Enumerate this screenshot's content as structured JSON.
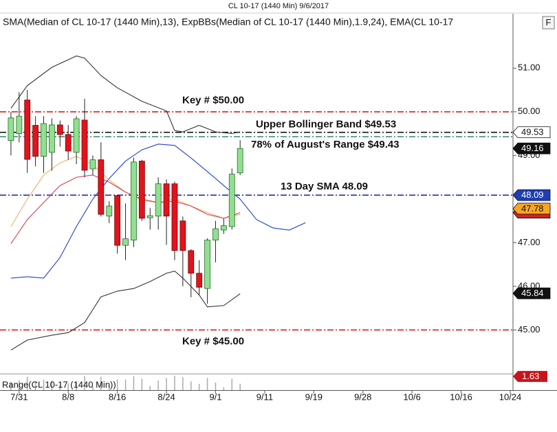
{
  "chart_data": {
    "type": "candlestick",
    "title": "CL 10-17 (1440 Min)  9/6/2017",
    "subtitle": "SMA(Median of CL 10-17 (1440 Min),13), ExpBBs(Median of CL 10-17 (1440 Min),1.9,24), EMA(CL 10-17",
    "button": "F",
    "up_color": "#8fe08f",
    "down_color": "#e3121b",
    "x": [
      0,
      1,
      2,
      3,
      4,
      5,
      6,
      7,
      8,
      9,
      10,
      11,
      12,
      13,
      14,
      15,
      16,
      17,
      18,
      19,
      20,
      21,
      22,
      23,
      24,
      25,
      26,
      27,
      28
    ],
    "open": [
      49.34,
      49.5,
      50.27,
      49.69,
      48.98,
      49.07,
      49.7,
      49.48,
      49.07,
      49.81,
      48.69,
      48.9,
      47.61,
      48.08,
      46.94,
      47.06,
      48.87,
      47.57,
      47.61,
      48.35,
      48.35,
      47.5,
      46.82,
      46.3,
      45.95,
      47.06,
      47.29,
      47.37,
      48.6
    ],
    "high": [
      50.0,
      50.45,
      50.5,
      49.9,
      49.9,
      49.85,
      49.8,
      49.7,
      49.9,
      50.3,
      49.0,
      49.3,
      47.95,
      48.1,
      47.9,
      48.95,
      48.9,
      47.8,
      48.5,
      48.45,
      48.4,
      47.6,
      46.85,
      46.6,
      47.1,
      47.5,
      47.55,
      48.7,
      49.35
    ],
    "low": [
      49.0,
      49.3,
      48.6,
      48.75,
      48.6,
      48.65,
      49.2,
      48.9,
      48.8,
      48.5,
      48.55,
      47.6,
      47.45,
      46.75,
      46.6,
      46.9,
      47.5,
      47.3,
      47.3,
      46.95,
      46.6,
      46.0,
      45.75,
      45.8,
      45.6,
      46.55,
      47.2,
      47.3,
      48.55
    ],
    "close": [
      49.86,
      49.9,
      48.91,
      48.98,
      49.73,
      49.7,
      49.48,
      49.1,
      49.84,
      48.66,
      48.9,
      47.65,
      47.84,
      46.94,
      47.09,
      48.85,
      47.56,
      47.62,
      48.35,
      47.61,
      46.82,
      46.82,
      46.3,
      45.98,
      47.06,
      47.32,
      47.39,
      48.57,
      49.16
    ],
    "xlim": [
      -1,
      61
    ],
    "xticks": [
      {
        "value": 1,
        "label": "7/31"
      },
      {
        "value": 7,
        "label": "8/8"
      },
      {
        "value": 13,
        "label": "8/16"
      },
      {
        "value": 19,
        "label": "8/24"
      },
      {
        "value": 25,
        "label": "9/1"
      },
      {
        "value": 31,
        "label": "9/11"
      },
      {
        "value": 37,
        "label": "9/19"
      },
      {
        "value": 43,
        "label": "9/28"
      },
      {
        "value": 49,
        "label": "10/6"
      },
      {
        "value": 55,
        "label": "10/16"
      },
      {
        "value": 61,
        "label": "10/24"
      }
    ],
    "ylim": [
      44,
      52.2
    ],
    "yticks": [
      {
        "value": 45,
        "label": "45.00"
      },
      {
        "value": 46,
        "label": "46.00"
      },
      {
        "value": 47,
        "label": "47.00"
      },
      {
        "value": 49,
        "label": "49.00"
      },
      {
        "value": 50,
        "label": "50.00"
      },
      {
        "value": 51,
        "label": "51.00"
      }
    ],
    "lines": [
      {
        "color": "#333333",
        "x": [
          0,
          2,
          5,
          8,
          9,
          11,
          13,
          16,
          19,
          20,
          21,
          23,
          25,
          27,
          28
        ],
        "values": [
          50.08,
          50.6,
          51.02,
          51.28,
          51.23,
          50.83,
          50.55,
          50.24,
          50.02,
          49.57,
          49.54,
          49.69,
          49.54,
          49.5,
          49.54
        ]
      },
      {
        "color": "#333333",
        "x": [
          0,
          2,
          5,
          7,
          9,
          11,
          13,
          15,
          17,
          19,
          20,
          21,
          23,
          24,
          26,
          28
        ],
        "values": [
          44.54,
          44.77,
          44.88,
          44.94,
          45.17,
          45.76,
          45.89,
          45.95,
          46.11,
          46.3,
          46.35,
          46.19,
          45.8,
          45.53,
          45.56,
          45.83
        ]
      },
      {
        "color": "#2040d0",
        "x": [
          0,
          2,
          4,
          6,
          8,
          10,
          12,
          14,
          16,
          18,
          20,
          22,
          24,
          26,
          28,
          30,
          32,
          34,
          36
        ],
        "values": [
          46.19,
          46.22,
          46.19,
          46.66,
          47.37,
          48.0,
          48.47,
          48.87,
          49.13,
          49.26,
          49.23,
          48.94,
          48.63,
          48.31,
          48.0,
          47.53,
          47.34,
          47.29,
          47.46
        ]
      },
      {
        "color": "#f0b060",
        "x": [
          0,
          2,
          4,
          6,
          8,
          10,
          12,
          14,
          16,
          18,
          20,
          22,
          24,
          26,
          28
        ],
        "values": [
          47.37,
          48.0,
          48.55,
          48.83,
          48.98,
          48.79,
          48.44,
          48.16,
          47.97,
          47.92,
          48.0,
          47.84,
          47.69,
          47.56,
          47.65
        ]
      },
      {
        "color": "#d04050",
        "x": [
          0,
          2,
          4,
          6,
          8,
          10,
          12,
          14,
          16,
          18,
          20,
          22,
          24,
          26,
          28
        ],
        "values": [
          46.98,
          47.53,
          47.92,
          48.31,
          48.5,
          48.55,
          48.39,
          48.16,
          48.0,
          47.92,
          47.95,
          47.84,
          47.65,
          47.56,
          47.69
        ]
      }
    ],
    "hlines": [
      {
        "value": 50.0,
        "color": "#d42020",
        "label": "Key # $50.00"
      },
      {
        "value": 49.53,
        "color": "#111111",
        "label": "Upper Bollinger Band $49.53"
      },
      {
        "value": 49.43,
        "color": "#2a8a60",
        "label": "78% of August's Range $49.43"
      },
      {
        "value": 48.09,
        "color": "#1a1aa0",
        "label": "13 Day SMA 48.09"
      },
      {
        "value": 45.0,
        "color": "#d42020",
        "label": "Key # $45.00"
      }
    ],
    "price_tags": [
      {
        "value": 49.53,
        "color": "#ffffff",
        "text_color": "#111111"
      },
      {
        "value": 49.16,
        "color": "#111111",
        "text_color": "#ffffff"
      },
      {
        "value": 48.09,
        "color": "#1e3eb4",
        "text_color": "#ffffff"
      },
      {
        "value": 47.69,
        "color": "#d62020",
        "text_color": "#d62020"
      },
      {
        "value": 47.78,
        "color": "#f6a623",
        "text_color": "#111111"
      },
      {
        "value": 45.84,
        "color": "#111111",
        "text_color": "#ffffff"
      }
    ],
    "range_panel": {
      "label": "Range(CL 10-17 (1440 Min))",
      "values": [
        1.0,
        1.15,
        1.6,
        1.05,
        1.25,
        1.15,
        0.6,
        0.8,
        1.05,
        1.7,
        0.45,
        1.6,
        0.5,
        1.3,
        1.25,
        1.65,
        1.35,
        0.5,
        1.15,
        1.45,
        1.7,
        1.55,
        1.05,
        0.75,
        1.45,
        0.9,
        0.35,
        1.35,
        0.75
      ],
      "color": "#aaaaaa",
      "ylim": [
        0,
        1.8
      ],
      "tag": 1.63,
      "tag_color": "#c8141c"
    }
  }
}
